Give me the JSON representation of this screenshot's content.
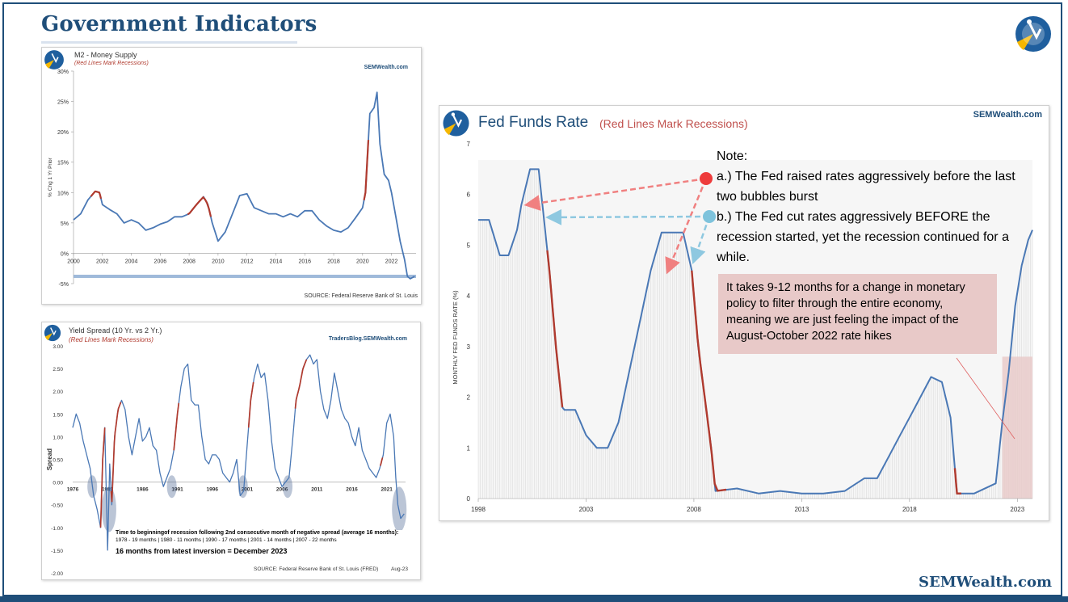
{
  "page": {
    "title": "Government Indicators",
    "brand": "SEMWealth.com"
  },
  "colors": {
    "navy": "#1f4e79",
    "line": "#4a78b5",
    "recession": "#b03a2e",
    "impact_box": "#e8c9c8",
    "arrow_red": "#f08080",
    "arrow_blue": "#8ec8e0"
  },
  "m2": {
    "title": "M2 - Money Supply",
    "subtitle": "(Red Lines Mark Recessions)",
    "brand": "SEMWealth.com",
    "source": "SOURCE:  Federal Reserve Bank of St. Louis",
    "chart_data": {
      "type": "line",
      "ylabel": "% Chg 1 Yr Prior",
      "ylim": [
        -5,
        30
      ],
      "xlim": [
        2000,
        2023.7
      ],
      "yticks": [
        "30%",
        "25%",
        "20%",
        "15%",
        "10%",
        "5%",
        "0%",
        "-5%"
      ],
      "xticks": [
        "2000",
        "2002",
        "2004",
        "2006",
        "2008",
        "2010",
        "2012",
        "2014",
        "2016",
        "2018",
        "2020",
        "2022"
      ],
      "x": [
        2000,
        2000.5,
        2001,
        2001.5,
        2001.8,
        2002,
        2002.5,
        2003,
        2003.5,
        2004,
        2004.5,
        2005,
        2005.5,
        2006,
        2006.5,
        2007,
        2007.5,
        2008,
        2008.5,
        2009,
        2009.3,
        2009.6,
        2010,
        2010.5,
        2011,
        2011.5,
        2012,
        2012.5,
        2013,
        2013.5,
        2014,
        2014.5,
        2015,
        2015.5,
        2016,
        2016.5,
        2017,
        2017.5,
        2018,
        2018.5,
        2019,
        2019.5,
        2020,
        2020.2,
        2020.5,
        2020.8,
        2021,
        2021.2,
        2021.5,
        2021.8,
        2022,
        2022.3,
        2022.6,
        2022.9,
        2023.1,
        2023.3,
        2023.6
      ],
      "values": [
        5.5,
        6.5,
        8.8,
        10.2,
        10.0,
        8.0,
        7.2,
        6.5,
        5.0,
        5.5,
        5.0,
        3.8,
        4.2,
        4.8,
        5.2,
        6.0,
        6.0,
        6.5,
        8.0,
        9.3,
        8.0,
        5.0,
        2.0,
        3.5,
        6.5,
        9.5,
        9.8,
        7.5,
        7.0,
        6.5,
        6.5,
        6.0,
        6.5,
        6.0,
        7.0,
        7.0,
        5.5,
        4.5,
        3.8,
        3.5,
        4.2,
        5.8,
        7.5,
        10.0,
        23.0,
        24.0,
        26.5,
        18.0,
        13.0,
        12.0,
        10.0,
        6.0,
        2.0,
        -1.0,
        -3.8,
        -4.2,
        -3.8
      ],
      "recessions": [
        [
          2001.2,
          2001.9
        ],
        [
          2007.9,
          2009.5
        ],
        [
          2020.1,
          2020.4
        ]
      ]
    }
  },
  "yield": {
    "title": "Yield Spread (10 Yr. vs 2 Yr.)",
    "subtitle": "(Red Lines Mark Recessions)",
    "brand": "TradersBlog.SEMWealth.com",
    "ylabel": "Spread",
    "box_heading": "Time to beginningof recession following 2nd consecutive month of negative spread (average 16 months):",
    "box_line": "1978 - 19 months    |    1980 - 11 months    |    1990 - 17 months    |    2001 - 14 months    |    2007 - 22 months",
    "latest": "16 months from latest inversion = December 2023",
    "source": "SOURCE:  Federal Reserve Bank of St. Louis (FRED)",
    "date": "Aug-23",
    "chart_data": {
      "type": "line",
      "ylim": [
        -2.0,
        3.0
      ],
      "xlim": [
        1976,
        2023.7
      ],
      "yticks": [
        "3.00",
        "2.50",
        "2.00",
        "1.50",
        "1.00",
        "0.50",
        "0.00",
        "-0.50",
        "-1.00",
        "-1.50",
        "-2.00"
      ],
      "xticks": [
        "1976",
        "1981",
        "1986",
        "1991",
        "1996",
        "2001",
        "2006",
        "2011",
        "2016",
        "2021"
      ],
      "x": [
        1976,
        1976.5,
        1977,
        1977.5,
        1978,
        1978.5,
        1979,
        1979.5,
        1980,
        1980.3,
        1980.6,
        1981,
        1981.3,
        1981.6,
        1982,
        1982.5,
        1983,
        1983.5,
        1984,
        1984.5,
        1985,
        1985.5,
        1986,
        1986.5,
        1987,
        1987.5,
        1988,
        1988.5,
        1989,
        1989.5,
        1990,
        1990.5,
        1991,
        1991.5,
        1992,
        1992.5,
        1993,
        1993.5,
        1994,
        1994.5,
        1995,
        1995.5,
        1996,
        1996.5,
        1997,
        1997.5,
        1998,
        1998.5,
        1999,
        1999.5,
        2000,
        2000.5,
        2001,
        2001.5,
        2002,
        2002.5,
        2003,
        2003.5,
        2004,
        2004.5,
        2005,
        2005.5,
        2006,
        2006.5,
        2007,
        2007.5,
        2008,
        2008.5,
        2009,
        2009.5,
        2010,
        2010.5,
        2011,
        2011.5,
        2012,
        2012.5,
        2013,
        2013.5,
        2014,
        2014.5,
        2015,
        2015.5,
        2016,
        2016.5,
        2017,
        2017.5,
        2018,
        2018.5,
        2019,
        2019.5,
        2020,
        2020.5,
        2021,
        2021.5,
        2022,
        2022.3,
        2022.6,
        2023,
        2023.5
      ],
      "values": [
        1.2,
        1.5,
        1.3,
        0.9,
        0.6,
        0.3,
        -0.3,
        -0.6,
        -1.0,
        0.5,
        1.2,
        -1.5,
        0.4,
        -0.5,
        1.0,
        1.6,
        1.8,
        1.6,
        1.0,
        0.6,
        1.0,
        1.4,
        0.9,
        1.0,
        1.2,
        0.8,
        0.7,
        0.2,
        -0.1,
        0.1,
        0.3,
        0.7,
        1.5,
        2.1,
        2.5,
        2.6,
        1.8,
        1.7,
        1.7,
        1.0,
        0.5,
        0.4,
        0.6,
        0.6,
        0.5,
        0.2,
        0.1,
        0.0,
        0.2,
        0.5,
        -0.3,
        -0.2,
        0.8,
        1.8,
        2.3,
        2.6,
        2.3,
        2.4,
        1.8,
        0.9,
        0.3,
        0.1,
        -0.1,
        0.0,
        0.1,
        0.9,
        1.8,
        2.1,
        2.5,
        2.7,
        2.8,
        2.6,
        2.7,
        2.0,
        1.6,
        1.4,
        1.8,
        2.4,
        2.0,
        1.6,
        1.4,
        1.3,
        1.0,
        0.8,
        1.2,
        0.7,
        0.5,
        0.3,
        0.2,
        0.1,
        0.3,
        0.6,
        1.3,
        1.5,
        1.0,
        0.1,
        -0.5,
        -0.8,
        -0.7
      ],
      "recessions": [
        [
          1980,
          1980.6
        ],
        [
          1981.5,
          1982.9
        ],
        [
          1990.5,
          1991.2
        ],
        [
          2001.2,
          2001.9
        ],
        [
          2007.9,
          2009.5
        ],
        [
          2020.1,
          2020.4
        ]
      ],
      "inversion_ellipses": [
        1978.8,
        1981.2,
        1990.2,
        2000.4,
        2006.8,
        2022.8
      ]
    }
  },
  "fed": {
    "title": "Fed Funds Rate",
    "subtitle": "(Red Lines Mark Recessions)",
    "brand": "SEMWealth.com",
    "ylabel": "MONTHLY FED FUNDS RATE (%)",
    "note_title": "Note:",
    "note_a": "a.) The Fed raised rates aggressively before the last two bubbles burst",
    "note_b": "b.) The Fed cut rates aggressively BEFORE the recession started, yet the recession continued for a while.",
    "impact": "It takes 9-12 months for a change in monetary policy to filter through the entire economy, meaning we are just feeling the impact of the August-October 2022 rate hikes",
    "chart_data": {
      "type": "line",
      "ylim": [
        0,
        7
      ],
      "xlim": [
        1998,
        2023.7
      ],
      "yticks": [
        "7",
        "6",
        "5",
        "4",
        "3",
        "2",
        "1",
        "0"
      ],
      "xticks": [
        "1998",
        "2003",
        "2008",
        "2013",
        "2018",
        "2023"
      ],
      "x": [
        1998,
        1998.5,
        1999,
        1999.4,
        1999.8,
        2000,
        2000.4,
        2000.8,
        2001,
        2001.3,
        2001.6,
        2001.9,
        2002,
        2002.5,
        2003,
        2003.5,
        2004,
        2004.5,
        2005,
        2005.5,
        2006,
        2006.5,
        2007,
        2007.5,
        2007.9,
        2008.2,
        2008.5,
        2008.8,
        2009,
        2010,
        2011,
        2012,
        2013,
        2014,
        2015,
        2015.9,
        2016.5,
        2017,
        2017.5,
        2018,
        2018.5,
        2019,
        2019.5,
        2019.9,
        2020.2,
        2020.5,
        2021,
        2022,
        2022.3,
        2022.6,
        2022.9,
        2023.2,
        2023.5,
        2023.7
      ],
      "values": [
        5.5,
        5.5,
        4.8,
        4.8,
        5.3,
        5.8,
        6.5,
        6.5,
        5.7,
        4.5,
        3.0,
        1.8,
        1.75,
        1.75,
        1.25,
        1.0,
        1.0,
        1.5,
        2.5,
        3.5,
        4.5,
        5.25,
        5.25,
        5.25,
        4.5,
        3.0,
        2.0,
        1.0,
        0.15,
        0.2,
        0.1,
        0.15,
        0.1,
        0.1,
        0.15,
        0.4,
        0.4,
        0.8,
        1.2,
        1.6,
        2.0,
        2.4,
        2.3,
        1.6,
        0.1,
        0.1,
        0.1,
        0.3,
        1.5,
        2.5,
        3.8,
        4.6,
        5.1,
        5.3
      ],
      "recessions": [
        [
          2001.2,
          2001.9
        ],
        [
          2007.9,
          2009.5
        ],
        [
          2020.1,
          2020.4
        ]
      ]
    }
  }
}
